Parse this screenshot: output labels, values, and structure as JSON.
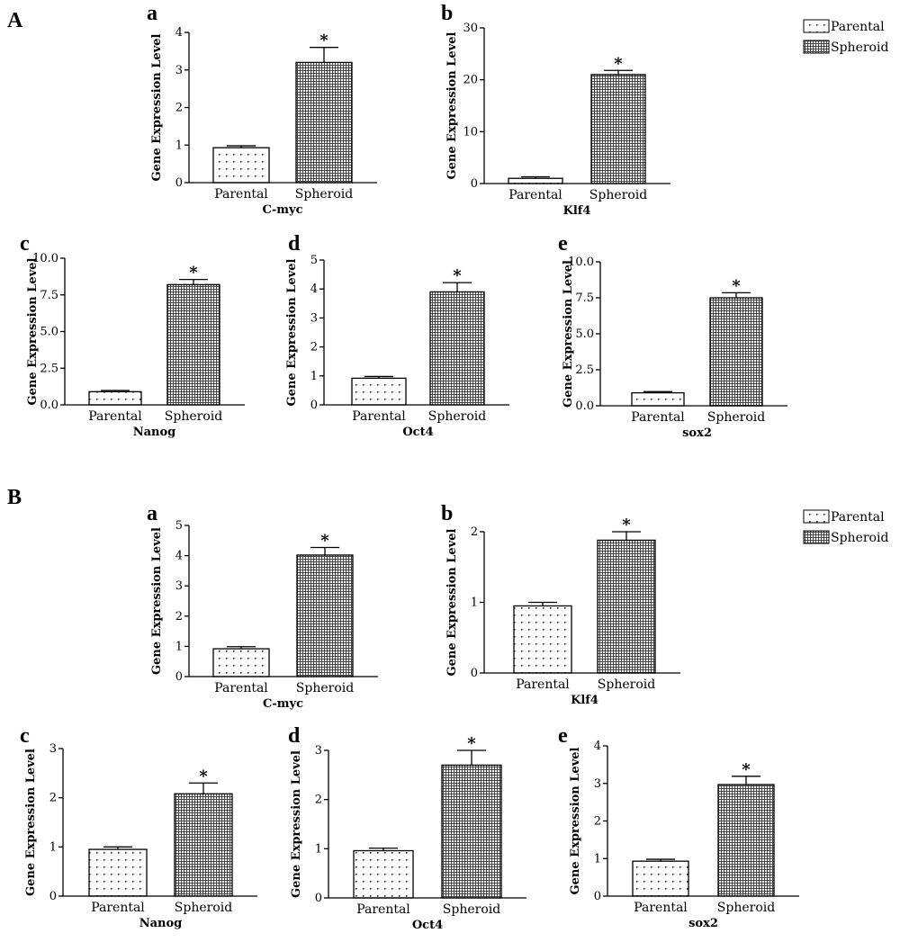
{
  "sections": [
    {
      "letter": "A",
      "legend": [
        "Parental",
        "Spheroid"
      ],
      "chart_data": [
        {
          "type": "bar",
          "panel": "a",
          "categories": [
            "Parental",
            "Spheroid"
          ],
          "values": [
            0.93,
            3.2
          ],
          "errors": [
            0.05,
            0.4
          ],
          "significance": [
            "",
            "*"
          ],
          "xlabel": "C-myc",
          "ylabel": "Gene Expression Level",
          "ylim": [
            0,
            4
          ],
          "ticks": [
            "0",
            "1",
            "2",
            "3",
            "4"
          ],
          "tickValues": [
            0,
            1,
            2,
            3,
            4
          ]
        },
        {
          "type": "bar",
          "panel": "b",
          "categories": [
            "Parental",
            "Spheroid"
          ],
          "values": [
            1.0,
            21.0
          ],
          "errors": [
            0.3,
            0.8
          ],
          "significance": [
            "",
            "*"
          ],
          "xlabel": "Klf4",
          "ylabel": "Gene Expression Level",
          "ylim": [
            0,
            30
          ],
          "ticks": [
            "0",
            "10",
            "20",
            "30"
          ],
          "tickValues": [
            0,
            10,
            20,
            30
          ]
        },
        {
          "type": "bar",
          "panel": "c",
          "categories": [
            "Parental",
            "Spheroid"
          ],
          "values": [
            0.9,
            8.2
          ],
          "errors": [
            0.08,
            0.35
          ],
          "significance": [
            "",
            "*"
          ],
          "xlabel": "Nanog",
          "ylabel": "Gene Expression Level",
          "ylim": [
            0,
            10
          ],
          "ticks": [
            "0.0",
            "2.5",
            "5.0",
            "7.5",
            "10.0"
          ],
          "tickValues": [
            0,
            2.5,
            5,
            7.5,
            10
          ]
        },
        {
          "type": "bar",
          "panel": "d",
          "categories": [
            "Parental",
            "Spheroid"
          ],
          "values": [
            0.92,
            3.9
          ],
          "errors": [
            0.06,
            0.32
          ],
          "significance": [
            "",
            "*"
          ],
          "xlabel": "Oct4",
          "ylabel": "Gene Expression Level",
          "ylim": [
            0,
            5
          ],
          "ticks": [
            "0",
            "1",
            "2",
            "3",
            "4",
            "5"
          ],
          "tickValues": [
            0,
            1,
            2,
            3,
            4,
            5
          ]
        },
        {
          "type": "bar",
          "panel": "e",
          "categories": [
            "Parental",
            "Spheroid"
          ],
          "values": [
            0.9,
            7.5
          ],
          "errors": [
            0.08,
            0.35
          ],
          "significance": [
            "",
            "*"
          ],
          "xlabel": "sox2",
          "ylabel": "Gene Expression Level",
          "ylim": [
            0,
            10
          ],
          "ticks": [
            "0.0",
            "2.5",
            "5.0",
            "7.5",
            "10.0"
          ],
          "tickValues": [
            0,
            2.5,
            5,
            7.5,
            10
          ]
        }
      ]
    },
    {
      "letter": "B",
      "legend": [
        "Parental",
        "Spheroid"
      ],
      "chart_data": [
        {
          "type": "bar",
          "panel": "a",
          "categories": [
            "Parental",
            "Spheroid"
          ],
          "values": [
            0.92,
            4.02
          ],
          "errors": [
            0.07,
            0.25
          ],
          "significance": [
            "",
            "*"
          ],
          "xlabel": "C-myc",
          "ylabel": "Gene Expression Level",
          "ylim": [
            0,
            5
          ],
          "ticks": [
            "0",
            "1",
            "2",
            "3",
            "4",
            "5"
          ],
          "tickValues": [
            0,
            1,
            2,
            3,
            4,
            5
          ]
        },
        {
          "type": "bar",
          "panel": "b",
          "categories": [
            "Parental",
            "Spheroid"
          ],
          "values": [
            0.95,
            1.88
          ],
          "errors": [
            0.05,
            0.12
          ],
          "significance": [
            "",
            "*"
          ],
          "xlabel": "Klf4",
          "ylabel": "Gene Expression Level",
          "ylim": [
            0,
            2
          ],
          "ticks": [
            "0",
            "1",
            "2"
          ],
          "tickValues": [
            0,
            1,
            2
          ]
        },
        {
          "type": "bar",
          "panel": "c",
          "categories": [
            "Parental",
            "Spheroid"
          ],
          "values": [
            0.95,
            2.08
          ],
          "errors": [
            0.05,
            0.22
          ],
          "significance": [
            "",
            "*"
          ],
          "xlabel": "Nanog",
          "ylabel": "Gene Expression Level",
          "ylim": [
            0,
            3
          ],
          "ticks": [
            "0",
            "1",
            "2",
            "3"
          ],
          "tickValues": [
            0,
            1,
            2,
            3
          ]
        },
        {
          "type": "bar",
          "panel": "d",
          "categories": [
            "Parental",
            "Spheroid"
          ],
          "values": [
            0.96,
            2.7
          ],
          "errors": [
            0.05,
            0.3
          ],
          "significance": [
            "",
            "*"
          ],
          "xlabel": "Oct4",
          "ylabel": "Gene Expression Level",
          "ylim": [
            0,
            3
          ],
          "ticks": [
            "0",
            "1",
            "2",
            "3"
          ],
          "tickValues": [
            0,
            1,
            2,
            3
          ]
        },
        {
          "type": "bar",
          "panel": "e",
          "categories": [
            "Parental",
            "Spheroid"
          ],
          "values": [
            0.93,
            2.97
          ],
          "errors": [
            0.05,
            0.22
          ],
          "significance": [
            "",
            "*"
          ],
          "xlabel": "sox2",
          "ylabel": "Gene Expression Level",
          "ylim": [
            0,
            4
          ],
          "ticks": [
            "0",
            "1",
            "2",
            "3",
            "4"
          ],
          "tickValues": [
            0,
            1,
            2,
            3,
            4
          ]
        }
      ]
    }
  ],
  "colors": {
    "axis": "#000000",
    "bar_fill": "#ffffff",
    "pattern": "#222222"
  }
}
